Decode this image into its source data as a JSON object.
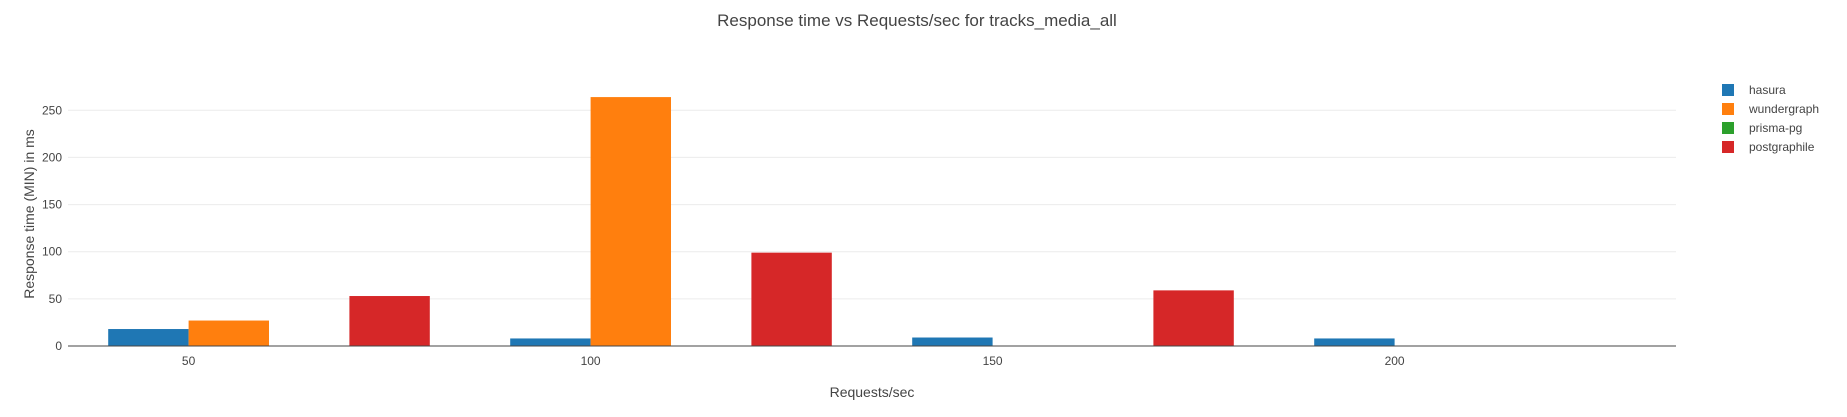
{
  "chart_data": {
    "type": "bar",
    "title": "Response time vs Requests/sec for tracks_media_all",
    "xlabel": "Requests/sec",
    "ylabel": "Response time (MIN) in ms",
    "categories": [
      "50",
      "100",
      "150",
      "200"
    ],
    "ylim": [
      0,
      280
    ],
    "yticks": [
      0,
      50,
      100,
      150,
      200,
      250
    ],
    "grid": true,
    "legend_position": "right",
    "series": [
      {
        "name": "hasura",
        "color": "#1f77b4",
        "values": [
          18,
          8,
          9,
          8
        ]
      },
      {
        "name": "wundergraph",
        "color": "#ff7f0e",
        "values": [
          27,
          264,
          null,
          null
        ]
      },
      {
        "name": "prisma-pg",
        "color": "#2ca02c",
        "values": [
          null,
          null,
          null,
          null
        ]
      },
      {
        "name": "postgraphile",
        "color": "#d62728",
        "values": [
          53,
          99,
          59,
          null
        ]
      }
    ]
  }
}
